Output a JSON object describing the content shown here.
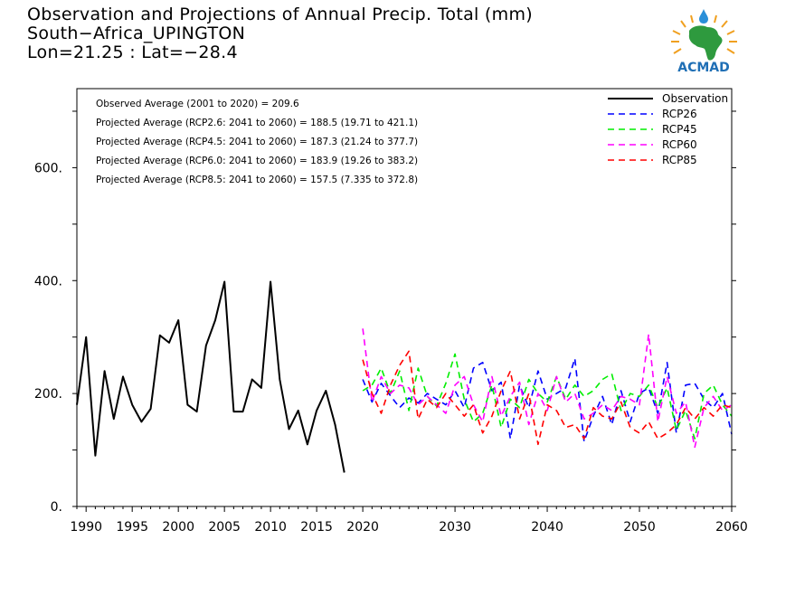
{
  "title": {
    "line1": "Observation and Projections of Annual Precip. Total (mm)",
    "line2": "South−Africa_UPINGTON",
    "line3": "Lon=21.25 : Lat=−28.4"
  },
  "logo": {
    "text": "ACMAD",
    "icon": "africa-map-logo-icon"
  },
  "colors": {
    "Observation": "#000000",
    "RCP26": "#0000ff",
    "RCP45": "#00ee00",
    "RCP60": "#ff00ff",
    "RCP85": "#ff0000"
  },
  "chart_data": {
    "type": "line",
    "title": "Observation and Projections of Annual Precip. Total (mm)",
    "xlim": [
      1989,
      2060
    ],
    "ylim": [
      0,
      740
    ],
    "x_ticks": [
      {
        "value": 1990,
        "label": "1990"
      },
      {
        "value": 1995,
        "label": "1995"
      },
      {
        "value": 2000,
        "label": "2000"
      },
      {
        "value": 2005,
        "label": "2005"
      },
      {
        "value": 2010,
        "label": "2010"
      },
      {
        "value": 2015,
        "label": "2015"
      },
      {
        "value": 2020,
        "label": "2020"
      },
      {
        "value": 2030,
        "label": "2030"
      },
      {
        "value": 2040,
        "label": "2040"
      },
      {
        "value": 2050,
        "label": "2050"
      },
      {
        "value": 2060,
        "label": "2060"
      }
    ],
    "y_ticks": [
      {
        "value": 0,
        "label": "0."
      },
      {
        "value": 200,
        "label": "200."
      },
      {
        "value": 400,
        "label": "400."
      },
      {
        "value": 600,
        "label": "600."
      }
    ],
    "legend_position": "top-right",
    "annotations": [
      "Observed Average (2001 to 2020) = 209.6",
      "Projected Average (RCP2.6: 2041 to 2060) = 188.5 (19.71 to 421.1)",
      "Projected Average (RCP4.5: 2041 to 2060) = 187.3 (21.24 to 377.7)",
      "Projected Average (RCP6.0: 2041 to 2060) = 183.9 (19.26 to 383.2)",
      "Projected Average (RCP8.5: 2041 to 2060) = 157.5 (7.335 to 372.8)"
    ],
    "series": [
      {
        "name": "Observation",
        "style": "solid",
        "x": [
          1989,
          1990,
          1991,
          1992,
          1993,
          1994,
          1995,
          1996,
          1997,
          1998,
          1999,
          2000,
          2001,
          2002,
          2003,
          2004,
          2005,
          2006,
          2007,
          2008,
          2009,
          2010,
          2011,
          2012,
          2013,
          2014,
          2015,
          2016,
          2017,
          2018,
          2019,
          2020
        ],
        "values": [
          180,
          300,
          90,
          240,
          155,
          230,
          180,
          150,
          173,
          303,
          290,
          330,
          180,
          168,
          285,
          330,
          398,
          168,
          168,
          225,
          210,
          398,
          225,
          137,
          170,
          110,
          170,
          205,
          145,
          60,
          null,
          null
        ]
      },
      {
        "name": "RCP26",
        "style": "dashed",
        "x": [
          2020,
          2021,
          2022,
          2023,
          2024,
          2025,
          2026,
          2027,
          2028,
          2029,
          2030,
          2031,
          2032,
          2033,
          2034,
          2035,
          2036,
          2037,
          2038,
          2039,
          2040,
          2041,
          2042,
          2043,
          2044,
          2045,
          2046,
          2047,
          2048,
          2049,
          2050,
          2051,
          2052,
          2053,
          2054,
          2055,
          2056,
          2057,
          2058,
          2059,
          2060
        ],
        "values": [
          225,
          185,
          218,
          196,
          175,
          192,
          183,
          200,
          190,
          180,
          205,
          175,
          245,
          255,
          205,
          220,
          120,
          215,
          175,
          240,
          190,
          200,
          210,
          262,
          115,
          160,
          195,
          145,
          205,
          150,
          200,
          210,
          165,
          255,
          130,
          215,
          218,
          190,
          175,
          200,
          128
        ]
      },
      {
        "name": "RCP45",
        "style": "dashed",
        "x": [
          2020,
          2021,
          2022,
          2023,
          2024,
          2025,
          2026,
          2027,
          2028,
          2029,
          2030,
          2031,
          2032,
          2033,
          2034,
          2035,
          2036,
          2037,
          2038,
          2039,
          2040,
          2041,
          2042,
          2043,
          2044,
          2045,
          2046,
          2047,
          2048,
          2049,
          2050,
          2051,
          2052,
          2053,
          2054,
          2055,
          2056,
          2057,
          2058,
          2059,
          2060
        ],
        "values": [
          205,
          215,
          245,
          200,
          240,
          170,
          245,
          195,
          178,
          218,
          270,
          190,
          150,
          165,
          215,
          140,
          190,
          175,
          225,
          200,
          185,
          230,
          190,
          215,
          195,
          205,
          225,
          235,
          170,
          200,
          195,
          215,
          175,
          210,
          135,
          170,
          120,
          200,
          215,
          180,
          160
        ]
      },
      {
        "name": "RCP60",
        "style": "dashed",
        "x": [
          2020,
          2021,
          2022,
          2023,
          2024,
          2025,
          2026,
          2027,
          2028,
          2029,
          2030,
          2031,
          2032,
          2033,
          2034,
          2035,
          2036,
          2037,
          2038,
          2039,
          2040,
          2041,
          2042,
          2043,
          2044,
          2045,
          2046,
          2047,
          2048,
          2049,
          2050,
          2051,
          2052,
          2053,
          2054,
          2055,
          2056,
          2057,
          2058,
          2059,
          2060
        ],
        "values": [
          315,
          185,
          230,
          200,
          215,
          210,
          180,
          195,
          180,
          165,
          215,
          230,
          180,
          150,
          230,
          160,
          195,
          220,
          145,
          200,
          170,
          230,
          185,
          200,
          155,
          165,
          180,
          170,
          195,
          190,
          180,
          305,
          150,
          230,
          165,
          185,
          105,
          175,
          195,
          170,
          180
        ]
      },
      {
        "name": "RCP85",
        "style": "dashed",
        "x": [
          2020,
          2021,
          2022,
          2023,
          2024,
          2025,
          2026,
          2027,
          2028,
          2029,
          2030,
          2031,
          2032,
          2033,
          2034,
          2035,
          2036,
          2037,
          2038,
          2039,
          2040,
          2041,
          2042,
          2043,
          2044,
          2045,
          2046,
          2047,
          2048,
          2049,
          2050,
          2051,
          2052,
          2053,
          2054,
          2055,
          2056,
          2057,
          2058,
          2059,
          2060
        ],
        "values": [
          260,
          200,
          165,
          215,
          250,
          275,
          155,
          190,
          175,
          200,
          180,
          160,
          180,
          130,
          160,
          205,
          240,
          155,
          200,
          110,
          180,
          170,
          140,
          145,
          120,
          175,
          160,
          155,
          185,
          140,
          130,
          150,
          120,
          130,
          145,
          175,
          155,
          175,
          160,
          180,
          175
        ]
      }
    ]
  }
}
